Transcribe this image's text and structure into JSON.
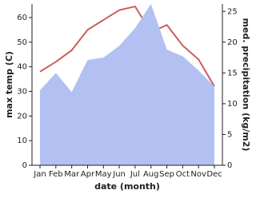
{
  "chart_data": {
    "type": "line-area",
    "x_label": "date (month)",
    "y_label": "max temp (C)",
    "y2_label": "med. precipitation (kg/m2)",
    "categories": [
      "Jan",
      "Feb",
      "Mar",
      "Apr",
      "May",
      "Jun",
      "Jul",
      "Aug",
      "Sep",
      "Oct",
      "Nov",
      "Dec"
    ],
    "series": [
      {
        "name": "max temp (C)",
        "type": "line",
        "color": "#cd5c5c",
        "values": [
          38,
          42,
          46.7,
          55,
          59,
          63,
          64.5,
          54,
          57,
          48.6,
          43,
          32
        ]
      },
      {
        "name": "med. precipitation (kg/m2)",
        "type": "area",
        "axis": "y2",
        "color": "#b3c1f2",
        "values": [
          12.2,
          15,
          11.9,
          17.1,
          17.5,
          19.4,
          22.3,
          26.2,
          18.8,
          17.7,
          15.4,
          12.8
        ]
      }
    ],
    "ylim": [
      0,
      65.5
    ],
    "yticks": [
      0,
      10,
      20,
      30,
      40,
      50,
      60
    ],
    "y2lim": [
      0,
      26.2
    ],
    "y2ticks": [
      0,
      5,
      10,
      15,
      20,
      25
    ]
  }
}
